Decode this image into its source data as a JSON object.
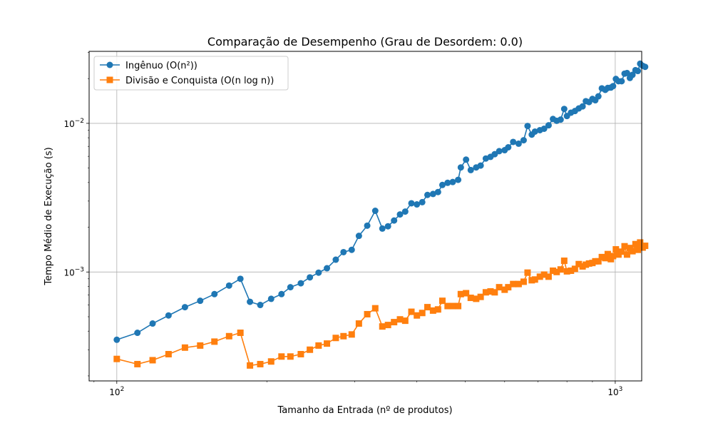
{
  "chart_data": {
    "type": "line",
    "title": "Comparação de Desempenho (Grau de Desordem: 0.0)",
    "xlabel": "Tamanho da Entrada (nº de produtos)",
    "ylabel": "Tempo Médio de Execução (s)",
    "xscale": "log",
    "yscale": "log",
    "xlim": [
      88,
      1130
    ],
    "ylim": [
      0.000185,
      0.0305
    ],
    "x_ticks": [
      {
        "value": 100,
        "base": "10",
        "exp": "2"
      },
      {
        "value": 1000,
        "base": "10",
        "exp": "3"
      }
    ],
    "y_ticks": [
      {
        "value": 0.001,
        "base": "10",
        "exp": "−3"
      },
      {
        "value": 0.01,
        "base": "10",
        "exp": "−2"
      }
    ],
    "grid": true,
    "legend_position": "upper-left",
    "series": [
      {
        "name": "Ingênuo (O(n²))",
        "color": "#1f77b4",
        "marker": "circle",
        "points": [
          [
            100,
            0.00035
          ],
          [
            110,
            0.00039
          ],
          [
            118,
            0.00045
          ],
          [
            127,
            0.00051
          ],
          [
            137,
            0.00058
          ],
          [
            147,
            0.00064
          ],
          [
            157,
            0.00071
          ],
          [
            168,
            0.00081
          ],
          [
            177,
            0.0009
          ],
          [
            185,
            0.00063
          ],
          [
            194,
            0.0006
          ],
          [
            204,
            0.00066
          ],
          [
            214,
            0.00071
          ],
          [
            223,
            0.00079
          ],
          [
            234,
            0.00084
          ],
          [
            244,
            0.00092
          ],
          [
            254,
            0.00099
          ],
          [
            264,
            0.00106
          ],
          [
            275,
            0.00121
          ],
          [
            285,
            0.00136
          ],
          [
            296,
            0.00141
          ],
          [
            306,
            0.00175
          ],
          [
            318,
            0.00205
          ],
          [
            330,
            0.00258
          ],
          [
            341,
            0.00196
          ],
          [
            350,
            0.00203
          ],
          [
            360,
            0.00222
          ],
          [
            370,
            0.00244
          ],
          [
            379,
            0.00255
          ],
          [
            390,
            0.0029
          ],
          [
            400,
            0.00285
          ],
          [
            410,
            0.00295
          ],
          [
            420,
            0.0033
          ],
          [
            431,
            0.00335
          ],
          [
            441,
            0.00345
          ],
          [
            450,
            0.00385
          ],
          [
            461,
            0.00398
          ],
          [
            472,
            0.00403
          ],
          [
            484,
            0.00417
          ],
          [
            490,
            0.00505
          ],
          [
            502,
            0.0057
          ],
          [
            513,
            0.00485
          ],
          [
            526,
            0.00505
          ],
          [
            537,
            0.0052
          ],
          [
            550,
            0.0058
          ],
          [
            562,
            0.00595
          ],
          [
            573,
            0.0062
          ],
          [
            585,
            0.0065
          ],
          [
            600,
            0.0066
          ],
          [
            610,
            0.0069
          ],
          [
            624,
            0.0075
          ],
          [
            640,
            0.0073
          ],
          [
            655,
            0.0077
          ],
          [
            667,
            0.0096
          ],
          [
            680,
            0.0084
          ],
          [
            690,
            0.0088
          ],
          [
            706,
            0.009
          ],
          [
            720,
            0.0092
          ],
          [
            735,
            0.0097
          ],
          [
            750,
            0.0107
          ],
          [
            763,
            0.0104
          ],
          [
            777,
            0.0106
          ],
          [
            790,
            0.0125
          ],
          [
            800,
            0.0112
          ],
          [
            815,
            0.0118
          ],
          [
            830,
            0.0121
          ],
          [
            845,
            0.0126
          ],
          [
            860,
            0.013
          ],
          [
            873,
            0.0141
          ],
          [
            886,
            0.0139
          ],
          [
            900,
            0.0146
          ],
          [
            912,
            0.0143
          ],
          [
            925,
            0.0152
          ],
          [
            940,
            0.0172
          ],
          [
            955,
            0.0168
          ],
          [
            966,
            0.0173
          ],
          [
            980,
            0.0174
          ],
          [
            990,
            0.0178
          ],
          [
            1003,
            0.0199
          ],
          [
            1015,
            0.0192
          ],
          [
            1030,
            0.0192
          ],
          [
            1044,
            0.0216
          ],
          [
            1056,
            0.0218
          ],
          [
            1070,
            0.0202
          ],
          [
            1083,
            0.0212
          ],
          [
            1098,
            0.0228
          ],
          [
            1110,
            0.0225
          ],
          [
            1122,
            0.0252
          ],
          [
            1135,
            0.0244
          ],
          [
            1148,
            0.024
          ]
        ]
      },
      {
        "name": "Divisão e Conquista (O(n log n))",
        "color": "#ff7f0e",
        "marker": "square",
        "points": [
          [
            100,
            0.00026
          ],
          [
            110,
            0.00024
          ],
          [
            118,
            0.000255
          ],
          [
            127,
            0.00028
          ],
          [
            137,
            0.00031
          ],
          [
            147,
            0.00032
          ],
          [
            157,
            0.00034
          ],
          [
            168,
            0.00037
          ],
          [
            177,
            0.00039
          ],
          [
            185,
            0.000235
          ],
          [
            194,
            0.00024
          ],
          [
            204,
            0.00025
          ],
          [
            214,
            0.00027
          ],
          [
            223,
            0.00027
          ],
          [
            234,
            0.00028
          ],
          [
            244,
            0.0003
          ],
          [
            254,
            0.00032
          ],
          [
            264,
            0.00033
          ],
          [
            275,
            0.00036
          ],
          [
            285,
            0.00037
          ],
          [
            296,
            0.00038
          ],
          [
            306,
            0.00045
          ],
          [
            318,
            0.00052
          ],
          [
            330,
            0.00057
          ],
          [
            341,
            0.00043
          ],
          [
            350,
            0.00044
          ],
          [
            360,
            0.00046
          ],
          [
            370,
            0.00048
          ],
          [
            379,
            0.00047
          ],
          [
            390,
            0.00054
          ],
          [
            400,
            0.00051
          ],
          [
            410,
            0.00053
          ],
          [
            420,
            0.00058
          ],
          [
            431,
            0.00055
          ],
          [
            441,
            0.00056
          ],
          [
            450,
            0.00064
          ],
          [
            461,
            0.00059
          ],
          [
            472,
            0.00059
          ],
          [
            484,
            0.00059
          ],
          [
            490,
            0.00071
          ],
          [
            502,
            0.00072
          ],
          [
            513,
            0.00067
          ],
          [
            526,
            0.00066
          ],
          [
            537,
            0.00068
          ],
          [
            550,
            0.00073
          ],
          [
            562,
            0.00074
          ],
          [
            573,
            0.00073
          ],
          [
            585,
            0.00079
          ],
          [
            600,
            0.00076
          ],
          [
            610,
            0.00079
          ],
          [
            624,
            0.00083
          ],
          [
            640,
            0.00083
          ],
          [
            655,
            0.00086
          ],
          [
            667,
            0.00099
          ],
          [
            680,
            0.00088
          ],
          [
            690,
            0.00089
          ],
          [
            706,
            0.00093
          ],
          [
            720,
            0.00096
          ],
          [
            735,
            0.00093
          ],
          [
            750,
            0.00102
          ],
          [
            763,
            0.001
          ],
          [
            777,
            0.00104
          ],
          [
            790,
            0.00119
          ],
          [
            800,
            0.00101
          ],
          [
            815,
            0.00102
          ],
          [
            830,
            0.00105
          ],
          [
            845,
            0.00113
          ],
          [
            860,
            0.00109
          ],
          [
            873,
            0.00112
          ],
          [
            886,
            0.00114
          ],
          [
            900,
            0.00115
          ],
          [
            912,
            0.00118
          ],
          [
            925,
            0.00118
          ],
          [
            940,
            0.00126
          ],
          [
            955,
            0.00124
          ],
          [
            966,
            0.00132
          ],
          [
            980,
            0.00122
          ],
          [
            990,
            0.00128
          ],
          [
            1003,
            0.00142
          ],
          [
            1015,
            0.00131
          ],
          [
            1030,
            0.00137
          ],
          [
            1044,
            0.00149
          ],
          [
            1056,
            0.00131
          ],
          [
            1070,
            0.00145
          ],
          [
            1083,
            0.00138
          ],
          [
            1098,
            0.00154
          ],
          [
            1110,
            0.00141
          ],
          [
            1122,
            0.00158
          ],
          [
            1135,
            0.00146
          ],
          [
            1148,
            0.0015
          ]
        ]
      }
    ]
  }
}
